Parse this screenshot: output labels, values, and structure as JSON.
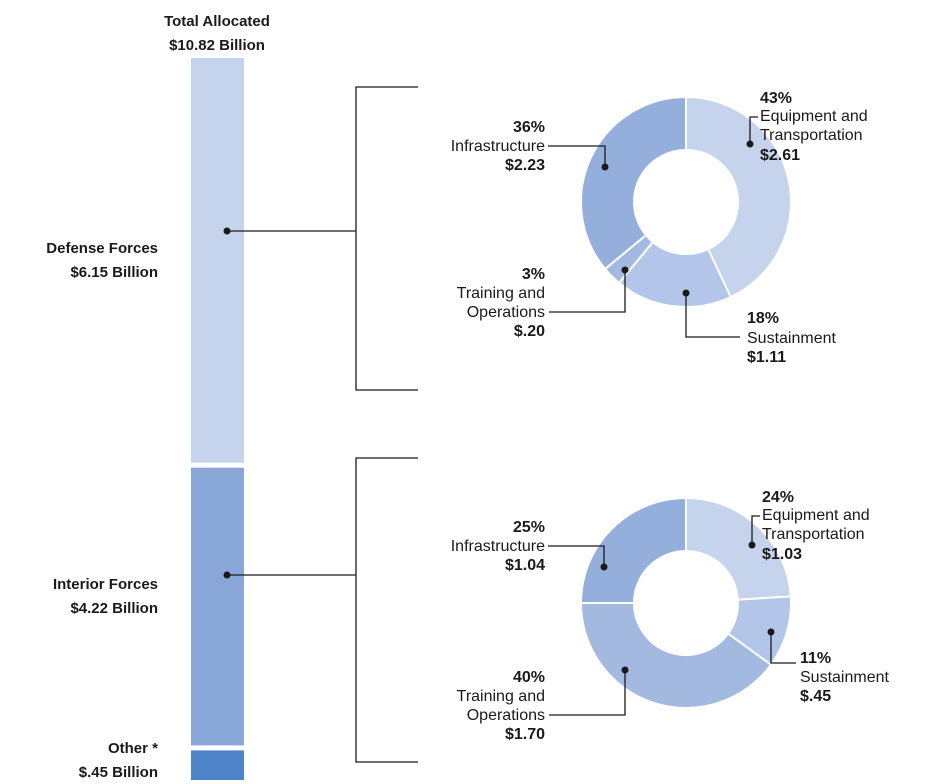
{
  "chart_data": [
    {
      "type": "bar",
      "title": "Total Allocated",
      "subtitle": "$10.82 Billion",
      "stacked": true,
      "orientation": "vertical",
      "segments": [
        {
          "name": "Defense Forces",
          "amount_label": "$6.15 Billion",
          "value": 6.15,
          "color": "#c5d3ec"
        },
        {
          "name": "Interior Forces",
          "amount_label": "$4.22 Billion",
          "value": 4.22,
          "color": "#88a7d8"
        },
        {
          "name": "Other *",
          "amount_label": "$.45 Billion",
          "value": 0.45,
          "color": "#4f85c8"
        }
      ]
    },
    {
      "type": "pie",
      "donut": true,
      "parent": "Defense Forces",
      "slices": [
        {
          "name": "Equipment and Transportation",
          "pct_label": "43%",
          "amount_label": "$2.61",
          "value": 43,
          "color": "#c5d3ec"
        },
        {
          "name": "Sustainment",
          "pct_label": "18%",
          "amount_label": "$1.11",
          "value": 18,
          "color": "#b3c5e8"
        },
        {
          "name": "Training and Operations",
          "pct_label": "3%",
          "amount_label": "$.20",
          "value": 3,
          "color": "#a4b9e0"
        },
        {
          "name": "Infrastructure",
          "pct_label": "36%",
          "amount_label": "$2.23",
          "value": 36,
          "color": "#94afdc"
        }
      ]
    },
    {
      "type": "pie",
      "donut": true,
      "parent": "Interior Forces",
      "slices": [
        {
          "name": "Equipment and Transportation",
          "pct_label": "24%",
          "amount_label": "$1.03",
          "value": 24,
          "color": "#c5d3ec"
        },
        {
          "name": "Sustainment",
          "pct_label": "11%",
          "amount_label": "$.45",
          "value": 11,
          "color": "#b3c5e8"
        },
        {
          "name": "Training and Operations",
          "pct_label": "40%",
          "amount_label": "$1.70",
          "value": 40,
          "color": "#a4b9e0"
        },
        {
          "name": "Infrastructure",
          "pct_label": "25%",
          "amount_label": "$1.04",
          "value": 25,
          "color": "#94afdc"
        }
      ]
    }
  ]
}
